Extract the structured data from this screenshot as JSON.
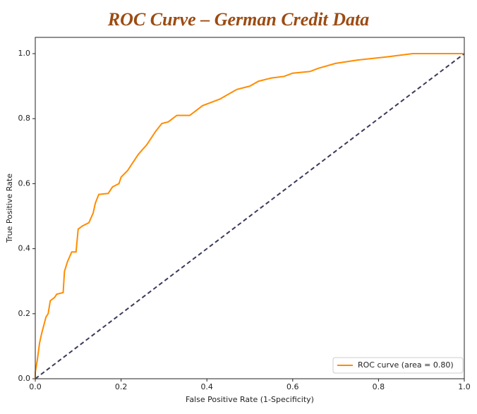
{
  "chart_data": {
    "type": "line",
    "title": "ROC Curve – German Credit Data",
    "x_label": "False Positive Rate (1-Specificity)",
    "y_label": "True Positive Rate",
    "xlim": [
      0,
      1
    ],
    "ylim": [
      0,
      1.05
    ],
    "xticks": [
      {
        "value": 0,
        "label": "0.0"
      },
      0.2,
      0.4,
      0.6,
      0.8,
      {
        "value": 1,
        "label": "1.0"
      }
    ],
    "yticks": [
      {
        "value": 0,
        "label": "0.0"
      },
      0.2,
      0.4,
      0.6,
      0.8,
      {
        "value": 1,
        "label": "1.0"
      }
    ],
    "legend": "lower right",
    "series": [
      {
        "name": "ROC curve (area = 0.80)",
        "color": "#ff8c00",
        "x": [
          0,
          0,
          0.005,
          0.01,
          0.015,
          0.025,
          0.03,
          0.035,
          0.045,
          0.05,
          0.065,
          0.068,
          0.075,
          0.085,
          0.095,
          0.1,
          0.11,
          0.125,
          0.135,
          0.14,
          0.148,
          0.17,
          0.18,
          0.195,
          0.2,
          0.215,
          0.225,
          0.24,
          0.26,
          0.28,
          0.295,
          0.31,
          0.33,
          0.36,
          0.38,
          0.39,
          0.41,
          0.43,
          0.45,
          0.47,
          0.5,
          0.52,
          0.55,
          0.58,
          0.6,
          0.64,
          0.66,
          0.7,
          0.75,
          0.82,
          0.88,
          1
        ],
        "values": [
          0,
          0.02,
          0.06,
          0.11,
          0.14,
          0.19,
          0.2,
          0.24,
          0.25,
          0.26,
          0.265,
          0.33,
          0.36,
          0.39,
          0.39,
          0.46,
          0.47,
          0.48,
          0.51,
          0.54,
          0.567,
          0.57,
          0.59,
          0.6,
          0.62,
          0.64,
          0.66,
          0.69,
          0.72,
          0.76,
          0.785,
          0.79,
          0.81,
          0.81,
          0.83,
          0.84,
          0.85,
          0.86,
          0.875,
          0.89,
          0.9,
          0.915,
          0.925,
          0.93,
          0.94,
          0.945,
          0.955,
          0.97,
          0.98,
          0.99,
          1,
          1
        ]
      }
    ],
    "reference": {
      "x": [
        0,
        1
      ],
      "values": [
        0,
        1
      ],
      "color": "#3a3a5a",
      "dashed": true
    }
  }
}
